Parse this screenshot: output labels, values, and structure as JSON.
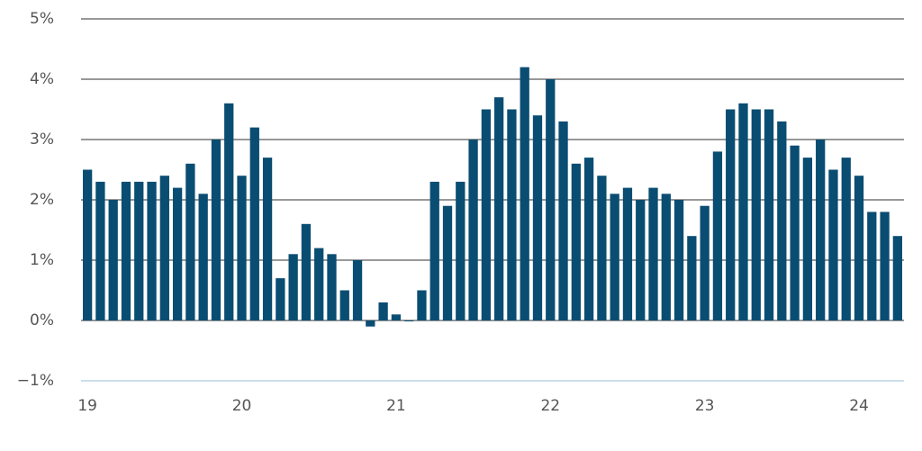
{
  "chart_data": {
    "type": "bar",
    "categories": [
      "19",
      null,
      null,
      null,
      null,
      null,
      null,
      null,
      null,
      null,
      null,
      null,
      "20",
      null,
      null,
      null,
      null,
      null,
      null,
      null,
      null,
      null,
      null,
      null,
      "21",
      null,
      null,
      null,
      null,
      null,
      null,
      null,
      null,
      null,
      null,
      null,
      "22",
      null,
      null,
      null,
      null,
      null,
      null,
      null,
      null,
      null,
      null,
      null,
      "23",
      null,
      null,
      null,
      null,
      null,
      null,
      null,
      null,
      null,
      null,
      null,
      "24",
      null,
      null,
      null
    ],
    "values": [
      2.5,
      2.3,
      2.0,
      2.3,
      2.3,
      2.3,
      2.4,
      2.2,
      2.6,
      2.1,
      3.0,
      3.6,
      2.4,
      3.2,
      2.7,
      0.7,
      1.1,
      1.6,
      1.2,
      1.1,
      0.5,
      1.0,
      -0.1,
      0.3,
      0.1,
      0.0,
      0.5,
      2.3,
      1.9,
      2.3,
      3.0,
      3.5,
      3.7,
      3.5,
      4.2,
      3.4,
      4.0,
      3.3,
      2.6,
      2.7,
      2.4,
      2.1,
      2.2,
      2.0,
      2.2,
      2.1,
      2.0,
      1.4,
      1.9,
      2.8,
      3.5,
      3.6,
      3.5,
      3.5,
      3.3,
      2.9,
      2.7,
      3.0,
      2.5,
      2.7,
      2.4,
      1.8,
      1.8,
      1.4
    ],
    "color": "#0a4d72",
    "ylim": [
      -1,
      5
    ],
    "yticks": [
      {
        "value": -1,
        "label": "−1%"
      },
      {
        "value": 0,
        "label": "0%"
      },
      {
        "value": 1,
        "label": "1%"
      },
      {
        "value": 2,
        "label": "2%"
      },
      {
        "value": 3,
        "label": "3%"
      },
      {
        "value": 4,
        "label": "4%"
      },
      {
        "value": 5,
        "label": "5%"
      }
    ],
    "grid": true
  }
}
